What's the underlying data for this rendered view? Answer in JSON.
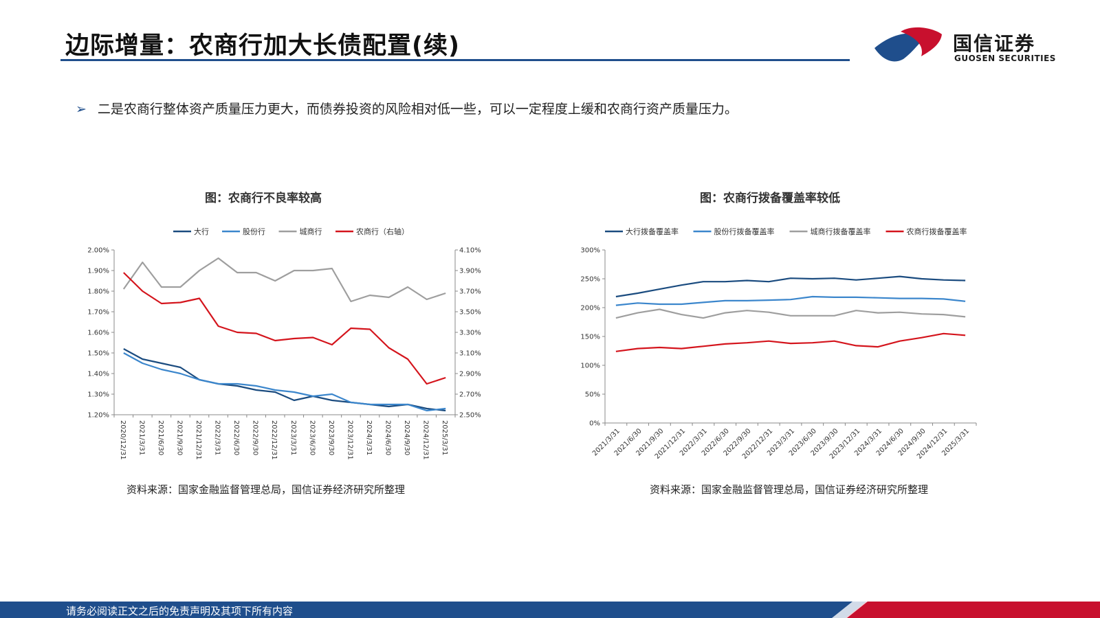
{
  "header": {
    "title": "边际增量：农商行加大长债配置(续)",
    "logo_cn": "国信证券",
    "logo_en": "GUOSEN SECURITIES"
  },
  "bullet": {
    "mark": "➢",
    "text": "二是农商行整体资产质量压力更大，而债券投资的风险相对低一些，可以一定程度上缓和农商行资产质量压力。"
  },
  "footer": {
    "text": "请务必阅读正文之后的免责声明及其项下所有内容"
  },
  "colors": {
    "dark_blue": "#1a4b7f",
    "light_blue": "#3b86cc",
    "gray": "#9e9e9e",
    "red": "#d4141c",
    "brand_blue": "#1f4e8c",
    "brand_red": "#c8102e"
  },
  "chart_data": [
    {
      "type": "line",
      "title": "图：农商行不良率较高",
      "source": "资料来源：国家金融监督管理总局，国信证券经济研究所整理",
      "legend_position": "top",
      "categories": [
        "2020/12/31",
        "2021/3/31",
        "2021/6/30",
        "2021/9/30",
        "2021/12/31",
        "2022/3/31",
        "2022/6/30",
        "2022/9/30",
        "2022/12/31",
        "2023/3/31",
        "2023/6/30",
        "2023/9/30",
        "2023/12/31",
        "2024/3/31",
        "2024/6/30",
        "2024/9/30",
        "2024/12/31",
        "2025/3/31"
      ],
      "ylim": [
        1.2,
        2.0
      ],
      "yticks": [
        "2.00%",
        "1.90%",
        "1.80%",
        "1.70%",
        "1.60%",
        "1.50%",
        "1.40%",
        "1.30%",
        "1.20%"
      ],
      "y2lim": [
        2.5,
        4.1
      ],
      "y2ticks": [
        "4.10%",
        "3.90%",
        "3.70%",
        "3.50%",
        "3.30%",
        "3.10%",
        "2.90%",
        "2.70%",
        "2.50%"
      ],
      "series": [
        {
          "name": "大行",
          "axis": "left",
          "color": "#1a4b7f",
          "values": [
            1.52,
            1.47,
            1.45,
            1.43,
            1.37,
            1.35,
            1.34,
            1.32,
            1.31,
            1.27,
            1.29,
            1.27,
            1.26,
            1.25,
            1.24,
            1.25,
            1.23,
            1.22
          ]
        },
        {
          "name": "股份行",
          "axis": "left",
          "color": "#3b86cc",
          "values": [
            1.5,
            1.45,
            1.42,
            1.4,
            1.37,
            1.35,
            1.35,
            1.34,
            1.32,
            1.31,
            1.29,
            1.3,
            1.26,
            1.25,
            1.25,
            1.25,
            1.22,
            1.23
          ]
        },
        {
          "name": "城商行",
          "axis": "left",
          "color": "#9e9e9e",
          "values": [
            1.81,
            1.94,
            1.82,
            1.82,
            1.9,
            1.96,
            1.89,
            1.89,
            1.85,
            1.9,
            1.9,
            1.91,
            1.75,
            1.78,
            1.77,
            1.82,
            1.76,
            1.79
          ]
        },
        {
          "name": "农商行（右轴）",
          "axis": "right",
          "color": "#d4141c",
          "values": [
            3.88,
            3.7,
            3.58,
            3.59,
            3.63,
            3.36,
            3.3,
            3.29,
            3.22,
            3.24,
            3.25,
            3.18,
            3.34,
            3.33,
            3.15,
            3.04,
            2.8,
            2.86
          ]
        }
      ]
    },
    {
      "type": "line",
      "title": "图：农商行拨备覆盖率较低",
      "source": "资料来源：国家金融监督管理总局，国信证券经济研究所整理",
      "legend_position": "top",
      "categories": [
        "2021/3/31",
        "2021/6/30",
        "2021/9/30",
        "2021/12/31",
        "2022/3/31",
        "2022/6/30",
        "2022/9/30",
        "2022/12/31",
        "2023/3/31",
        "2023/6/30",
        "2023/9/30",
        "2023/12/31",
        "2024/3/31",
        "2024/6/30",
        "2024/9/30",
        "2024/12/31",
        "2025/3/31"
      ],
      "ylim": [
        0,
        300
      ],
      "yticks": [
        "300%",
        "250%",
        "200%",
        "150%",
        "100%",
        "50%",
        "0%"
      ],
      "series": [
        {
          "name": "大行拨备覆盖率",
          "color": "#1a4b7f",
          "values": [
            219,
            225,
            232,
            239,
            245,
            245,
            247,
            245,
            251,
            250,
            251,
            248,
            251,
            254,
            250,
            248,
            247
          ]
        },
        {
          "name": "股份行拨备覆盖率",
          "color": "#3b86cc",
          "values": [
            204,
            208,
            206,
            206,
            209,
            212,
            212,
            213,
            214,
            219,
            218,
            218,
            217,
            216,
            216,
            215,
            211
          ]
        },
        {
          "name": "城商行拨备覆盖率",
          "color": "#9e9e9e",
          "values": [
            182,
            191,
            197,
            188,
            182,
            191,
            195,
            192,
            186,
            186,
            186,
            195,
            191,
            192,
            189,
            188,
            184
          ]
        },
        {
          "name": "农商行拨备覆盖率",
          "color": "#d4141c",
          "values": [
            124,
            129,
            131,
            129,
            133,
            137,
            139,
            142,
            138,
            139,
            142,
            134,
            132,
            142,
            148,
            155,
            152
          ]
        }
      ]
    }
  ]
}
